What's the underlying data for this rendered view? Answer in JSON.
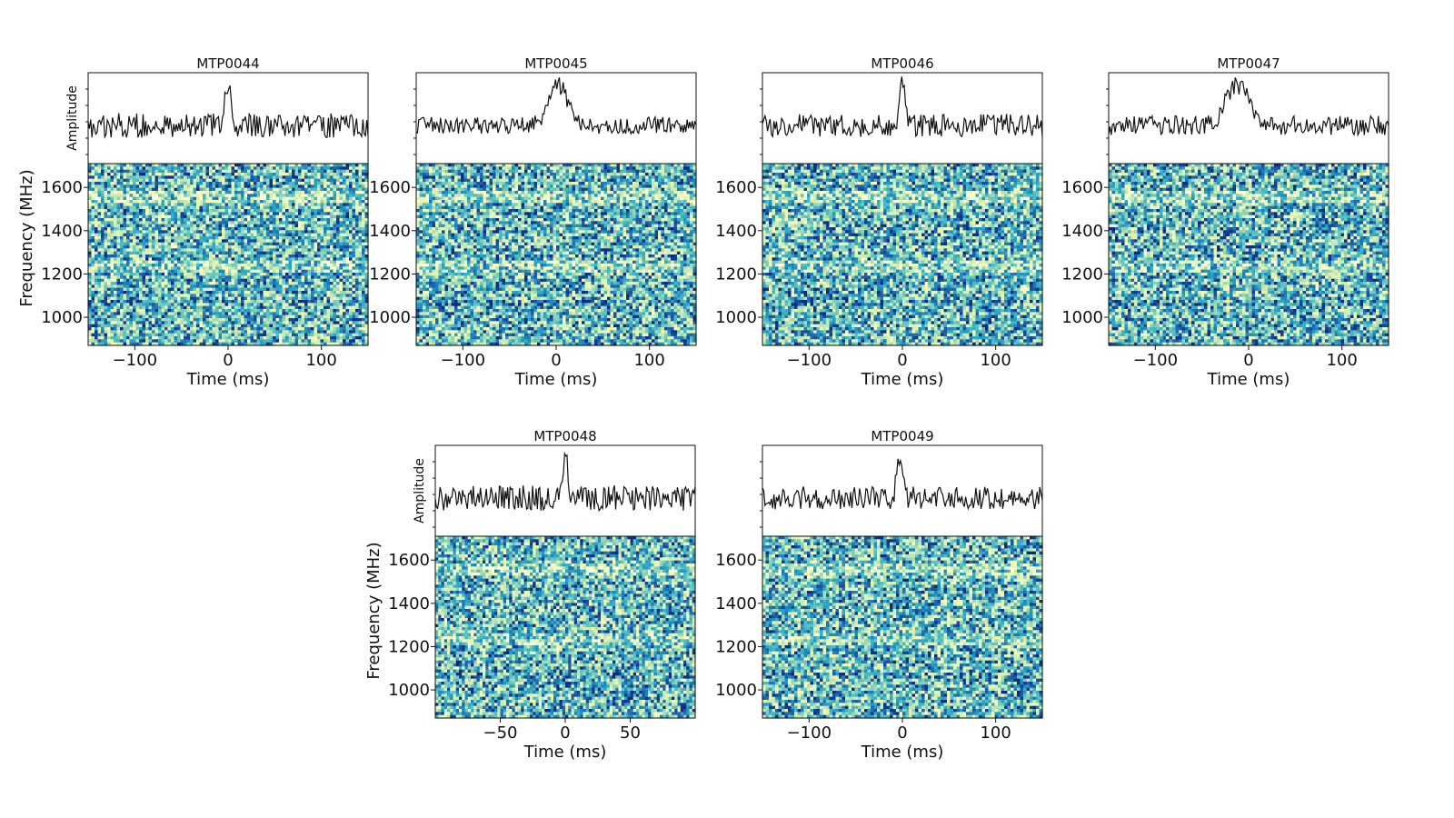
{
  "figure": {
    "description_axis": {
      "time_label": "Time (ms)",
      "freq_label": "Frequency (MHz)",
      "amp_label": "Amplitude"
    }
  },
  "chart_data": [
    {
      "type": "line+heatmap",
      "title": "MTP0044",
      "xlabel": "Time (ms)",
      "ylabel": "Frequency (MHz)",
      "amplitude_ylabel": "Amplitude",
      "xlim": [
        -150,
        150
      ],
      "ylim": [
        870,
        1710
      ],
      "xticks": [
        -100,
        0,
        100
      ],
      "yticks": [
        1000,
        1200,
        1400,
        1600
      ],
      "pulse": {
        "t": 0,
        "width_ms": 3,
        "height": 0.95
      },
      "noise": 0.32,
      "colormap": "YlGnBu",
      "show_amp_ylabel": true,
      "show_freq_ylabel": true
    },
    {
      "type": "line+heatmap",
      "title": "MTP0045",
      "xlabel": "Time (ms)",
      "ylabel": "",
      "amplitude_ylabel": "",
      "xlim": [
        -150,
        150
      ],
      "ylim": [
        870,
        1710
      ],
      "xticks": [
        -100,
        0,
        100
      ],
      "yticks": [
        1000,
        1200,
        1400,
        1600
      ],
      "pulse": {
        "t": 2,
        "width_ms": 10,
        "height": 0.85
      },
      "noise": 0.22,
      "colormap": "YlGnBu",
      "show_amp_ylabel": false,
      "show_freq_ylabel": false
    },
    {
      "type": "line+heatmap",
      "title": "MTP0046",
      "xlabel": "Time (ms)",
      "ylabel": "",
      "amplitude_ylabel": "",
      "xlim": [
        -150,
        150
      ],
      "ylim": [
        870,
        1710
      ],
      "xticks": [
        -100,
        0,
        100
      ],
      "yticks": [
        1000,
        1200,
        1400,
        1600
      ],
      "pulse": {
        "t": 0,
        "width_ms": 3,
        "height": 0.9
      },
      "noise": 0.3,
      "colormap": "YlGnBu",
      "show_amp_ylabel": false,
      "show_freq_ylabel": false
    },
    {
      "type": "line+heatmap",
      "title": "MTP0047",
      "xlabel": "Time (ms)",
      "ylabel": "",
      "amplitude_ylabel": "",
      "xlim": [
        -150,
        150
      ],
      "ylim": [
        870,
        1710
      ],
      "xticks": [
        -100,
        0,
        100
      ],
      "yticks": [
        1000,
        1200,
        1400,
        1600
      ],
      "pulse": {
        "t": -12,
        "width_ms": 12,
        "height": 0.85
      },
      "noise": 0.25,
      "colormap": "YlGnBu",
      "show_amp_ylabel": false,
      "show_freq_ylabel": false
    },
    {
      "type": "line+heatmap",
      "title": "MTP0048",
      "xlabel": "Time (ms)",
      "ylabel": "Frequency (MHz)",
      "amplitude_ylabel": "Amplitude",
      "xlim": [
        -100,
        100
      ],
      "ylim": [
        870,
        1710
      ],
      "xticks": [
        -50,
        0,
        50
      ],
      "yticks": [
        1000,
        1200,
        1400,
        1600
      ],
      "pulse": {
        "t": 0,
        "width_ms": 2,
        "height": 0.9
      },
      "noise": 0.33,
      "colormap": "YlGnBu",
      "show_amp_ylabel": true,
      "show_freq_ylabel": true
    },
    {
      "type": "line+heatmap",
      "title": "MTP0049",
      "xlabel": "Time (ms)",
      "ylabel": "",
      "amplitude_ylabel": "",
      "xlim": [
        -150,
        150
      ],
      "ylim": [
        870,
        1710
      ],
      "xticks": [
        -100,
        0,
        100
      ],
      "yticks": [
        1000,
        1200,
        1400,
        1600
      ],
      "pulse": {
        "t": -3,
        "width_ms": 3,
        "height": 0.9
      },
      "noise": 0.3,
      "colormap": "YlGnBu",
      "show_amp_ylabel": false,
      "show_freq_ylabel": false
    }
  ]
}
